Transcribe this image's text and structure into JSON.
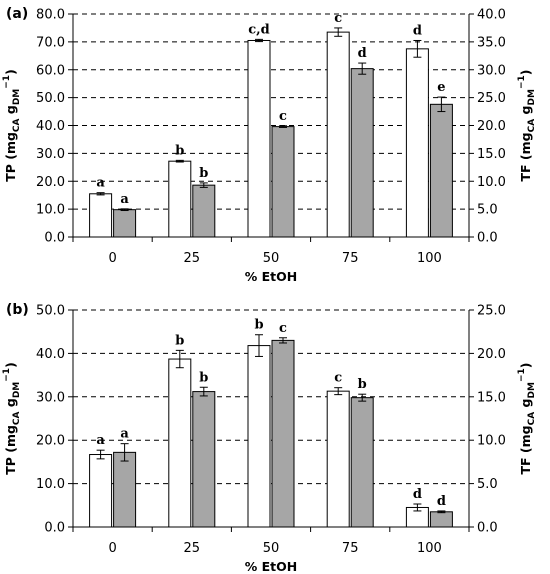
{
  "chart_data": [
    {
      "type": "bar",
      "panel_label": "(a)",
      "categories": [
        "0",
        "25",
        "50",
        "75",
        "100"
      ],
      "xlabel": "% EtOH",
      "ylabel": "TP (mgCA gDM−1)",
      "y2label": "TF (mgCA gDM−1)",
      "ylim": [
        0,
        80
      ],
      "y2lim": [
        0,
        40
      ],
      "yticks": [
        "0.0",
        "10.0",
        "20.0",
        "30.0",
        "40.0",
        "50.0",
        "60.0",
        "70.0",
        "80.0"
      ],
      "y2ticks": [
        "0.0",
        "5.0",
        "10.0",
        "15.0",
        "20.0",
        "25.0",
        "30.0",
        "35.0",
        "40.0"
      ],
      "grid": "horizontal dashed",
      "series": [
        {
          "axis": "left",
          "color": "#ffffff",
          "values": [
            15.5,
            27.2,
            70.5,
            73.5,
            67.5
          ],
          "errors": [
            0.4,
            0.3,
            0.4,
            1.5,
            3.0
          ],
          "labels": [
            "a",
            "b",
            "c,d",
            "c",
            "d"
          ]
        },
        {
          "axis": "right",
          "color": "#a6a6a6",
          "values": [
            4.9,
            9.3,
            19.8,
            30.2,
            23.8
          ],
          "errors": [
            0.15,
            0.4,
            0.15,
            1.0,
            1.3
          ],
          "labels": [
            "a",
            "b",
            "c",
            "d",
            "e"
          ]
        }
      ]
    },
    {
      "type": "bar",
      "panel_label": "(b)",
      "categories": [
        "0",
        "25",
        "50",
        "75",
        "100"
      ],
      "xlabel": "% EtOH",
      "ylabel": "TP (mgCA gDM−1)",
      "y2label": "TF (mgCA gDM−1)",
      "ylim": [
        0,
        50
      ],
      "y2lim": [
        0,
        25
      ],
      "yticks": [
        "0.0",
        "10.0",
        "20.0",
        "30.0",
        "40.0",
        "50.0"
      ],
      "y2ticks": [
        "0.0",
        "5.0",
        "10.0",
        "15.0",
        "20.0",
        "25.0"
      ],
      "grid": "horizontal dashed",
      "series": [
        {
          "axis": "left",
          "color": "#ffffff",
          "values": [
            16.7,
            38.7,
            41.8,
            31.3,
            4.5
          ],
          "errors": [
            1.0,
            2.0,
            2.5,
            0.8,
            0.8
          ],
          "labels": [
            "a",
            "b",
            "b",
            "c",
            "d"
          ]
        },
        {
          "axis": "right",
          "color": "#a6a6a6",
          "values": [
            8.6,
            15.6,
            21.5,
            14.9,
            1.75
          ],
          "errors": [
            1.0,
            0.5,
            0.3,
            0.4,
            0.1
          ],
          "labels": [
            "a",
            "b",
            "c",
            "b",
            "d"
          ]
        }
      ]
    }
  ]
}
